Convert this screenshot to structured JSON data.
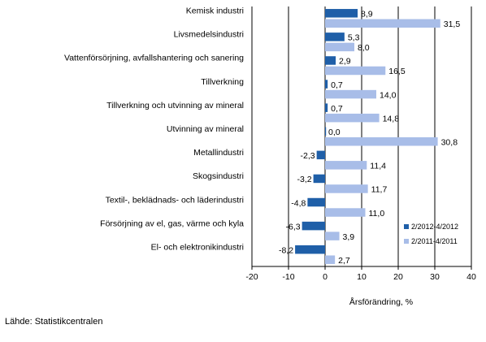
{
  "chart_data": {
    "type": "bar",
    "orientation": "horizontal",
    "categories": [
      "Kemisk industri",
      "Livsmedelsindustri",
      "Vattenförsörjning, avfallshantering och sanering",
      "Tillverkning",
      "Tillverkning och utvinning av mineral",
      "Utvinning av mineral",
      "Metallindustri",
      "Skogsindustri",
      "Textil-, beklädnads- och läderindustri",
      "Försörjning av el, gas, värme och kyla",
      "El- och elektronikindustri"
    ],
    "series": [
      {
        "name": "2/2012-4/2012",
        "color": "#1f5fa8",
        "values": [
          8.9,
          5.3,
          2.9,
          0.7,
          0.7,
          0.0,
          -2.3,
          -3.2,
          -4.8,
          -6.3,
          -8.2
        ],
        "labels": [
          "8,9",
          "5,3",
          "2,9",
          "0,7",
          "0,7",
          "0,0",
          "-2,3",
          "-3,2",
          "-4,8",
          "-6,3",
          "-8,2"
        ]
      },
      {
        "name": "2/2011-4/2011",
        "color": "#a8bde8",
        "values": [
          31.5,
          8.0,
          16.5,
          14.0,
          14.8,
          30.8,
          11.4,
          11.7,
          11.0,
          3.9,
          2.7
        ],
        "labels": [
          "31,5",
          "8,0",
          "16,5",
          "14,0",
          "14,8",
          "30,8",
          "11,4",
          "11,7",
          "11,0",
          "3,9",
          "2,7"
        ]
      }
    ],
    "xlim": [
      -20,
      40
    ],
    "xticks": [
      -20,
      -10,
      0,
      10,
      20,
      30,
      40
    ],
    "xlabel": "Årsförändring, %",
    "grid": true,
    "legend_position": "bottom-right"
  },
  "source": "Lähde: Statistikcentralen"
}
